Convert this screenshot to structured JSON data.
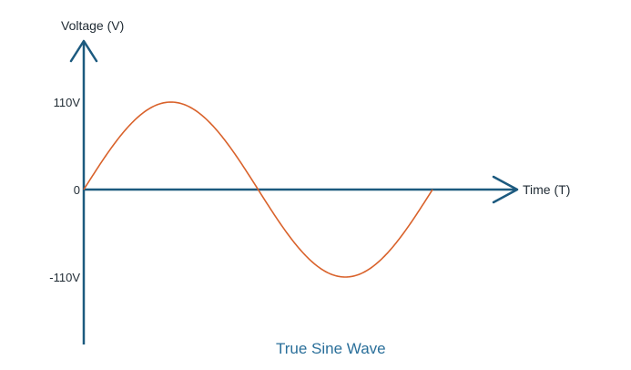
{
  "chart_data": {
    "type": "line",
    "title": "True Sine Wave",
    "xlabel": "Time (T)",
    "ylabel": "Voltage (V)",
    "y_ticks": [
      {
        "value": 110,
        "label": "110V"
      },
      {
        "value": 0,
        "label": "0"
      },
      {
        "value": -110,
        "label": "-110V"
      }
    ],
    "ylim": [
      -180,
      185
    ],
    "xlim": [
      0,
      1.29
    ],
    "series": [
      {
        "function": "sine",
        "amplitude": 110,
        "period": 1,
        "x_start": 0,
        "x_end": 1,
        "color": "#d9622b"
      }
    ],
    "axis_color": "#1c5a7f",
    "grid": false
  }
}
